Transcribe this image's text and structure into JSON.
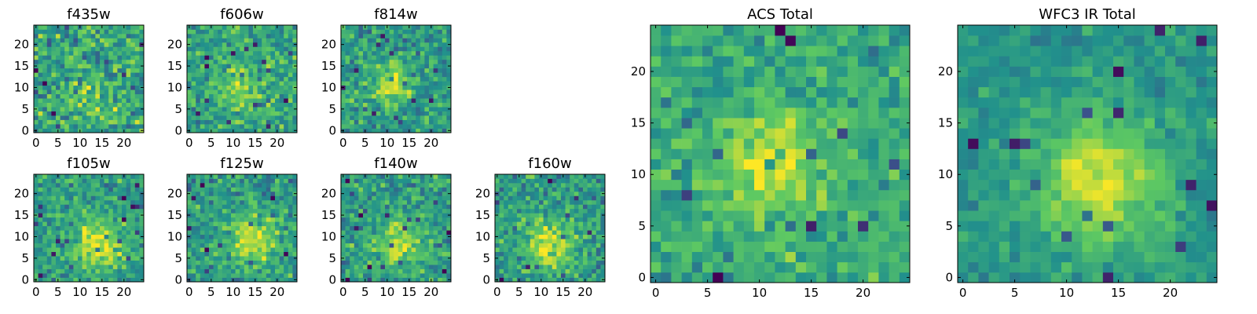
{
  "figure": {
    "description_title": ""
  },
  "colormap": {
    "name": "viridis",
    "stops": [
      "#440154",
      "#3b528b",
      "#21918c",
      "#5ec962",
      "#fde725"
    ]
  },
  "chart_data": [
    {
      "type": "heatmap",
      "title": "f435w",
      "grid_size": 25,
      "xlim": [
        0,
        24
      ],
      "ylim": [
        0,
        24
      ],
      "xticks": [
        0,
        5,
        10,
        15,
        20
      ],
      "yticks": [
        0,
        5,
        10,
        15,
        20
      ],
      "xtick_labels": [
        "0",
        "5",
        "10",
        "15",
        "20"
      ],
      "ytick_labels": [
        "0",
        "5",
        "10",
        "15",
        "20"
      ],
      "source_center": [
        12,
        8
      ],
      "source_sigma": 3.5,
      "peak_amplitude": 0.15,
      "noise_level": 0.28,
      "background_level": 0.58,
      "seed": 11
    },
    {
      "type": "heatmap",
      "title": "f606w",
      "grid_size": 25,
      "xlim": [
        0,
        24
      ],
      "ylim": [
        0,
        24
      ],
      "xticks": [
        0,
        5,
        10,
        15,
        20
      ],
      "yticks": [
        0,
        5,
        10,
        15,
        20
      ],
      "xtick_labels": [
        "0",
        "5",
        "10",
        "15",
        "20"
      ],
      "ytick_labels": [
        "0",
        "5",
        "10",
        "15",
        "20"
      ],
      "source_center": [
        12,
        10
      ],
      "source_sigma": 3.5,
      "peak_amplitude": 0.25,
      "noise_level": 0.22,
      "background_level": 0.58,
      "seed": 23
    },
    {
      "type": "heatmap",
      "title": "f814w",
      "grid_size": 25,
      "xlim": [
        0,
        24
      ],
      "ylim": [
        0,
        24
      ],
      "xticks": [
        0,
        5,
        10,
        15,
        20
      ],
      "yticks": [
        0,
        5,
        10,
        15,
        20
      ],
      "xtick_labels": [
        "0",
        "5",
        "10",
        "15",
        "20"
      ],
      "ytick_labels": [
        "0",
        "5",
        "10",
        "15",
        "20"
      ],
      "source_center": [
        11,
        11
      ],
      "source_sigma": 3.2,
      "peak_amplitude": 0.35,
      "noise_level": 0.22,
      "background_level": 0.55,
      "seed": 37
    },
    {
      "type": "heatmap",
      "title": "f105w",
      "grid_size": 25,
      "xlim": [
        0,
        24
      ],
      "ylim": [
        0,
        24
      ],
      "xticks": [
        0,
        5,
        10,
        15,
        20
      ],
      "yticks": [
        0,
        5,
        10,
        15,
        20
      ],
      "xtick_labels": [
        "0",
        "5",
        "10",
        "15",
        "20"
      ],
      "ytick_labels": [
        "0",
        "5",
        "10",
        "15",
        "20"
      ],
      "source_center": [
        14,
        8
      ],
      "source_sigma": 4.0,
      "peak_amplitude": 0.4,
      "noise_level": 0.2,
      "background_level": 0.55,
      "seed": 41
    },
    {
      "type": "heatmap",
      "title": "f125w",
      "grid_size": 25,
      "xlim": [
        0,
        24
      ],
      "ylim": [
        0,
        24
      ],
      "xticks": [
        0,
        5,
        10,
        15,
        20
      ],
      "yticks": [
        0,
        5,
        10,
        15,
        20
      ],
      "xtick_labels": [
        "0",
        "5",
        "10",
        "15",
        "20"
      ],
      "ytick_labels": [
        "0",
        "5",
        "10",
        "15",
        "20"
      ],
      "source_center": [
        14,
        9
      ],
      "source_sigma": 4.0,
      "peak_amplitude": 0.35,
      "noise_level": 0.22,
      "background_level": 0.55,
      "seed": 53
    },
    {
      "type": "heatmap",
      "title": "f140w",
      "grid_size": 25,
      "xlim": [
        0,
        24
      ],
      "ylim": [
        0,
        24
      ],
      "xticks": [
        0,
        5,
        10,
        15,
        20
      ],
      "yticks": [
        0,
        5,
        10,
        15,
        20
      ],
      "xtick_labels": [
        "0",
        "5",
        "10",
        "15",
        "20"
      ],
      "ytick_labels": [
        "0",
        "5",
        "10",
        "15",
        "20"
      ],
      "source_center": [
        13,
        8
      ],
      "source_sigma": 4.0,
      "peak_amplitude": 0.35,
      "noise_level": 0.22,
      "background_level": 0.55,
      "seed": 67
    },
    {
      "type": "heatmap",
      "title": "f160w",
      "grid_size": 25,
      "xlim": [
        0,
        24
      ],
      "ylim": [
        0,
        24
      ],
      "xticks": [
        0,
        5,
        10,
        15,
        20
      ],
      "yticks": [
        0,
        5,
        10,
        15,
        20
      ],
      "xtick_labels": [
        "0",
        "5",
        "10",
        "15",
        "20"
      ],
      "ytick_labels": [
        "0",
        "5",
        "10",
        "15",
        "20"
      ],
      "source_center": [
        12,
        8
      ],
      "source_sigma": 4.0,
      "peak_amplitude": 0.35,
      "noise_level": 0.22,
      "background_level": 0.55,
      "seed": 79
    },
    {
      "type": "heatmap",
      "title": "ACS Total",
      "grid_size": 25,
      "xlim": [
        0,
        24
      ],
      "ylim": [
        0,
        24
      ],
      "xticks": [
        0,
        5,
        10,
        15,
        20
      ],
      "yticks": [
        0,
        5,
        10,
        15,
        20
      ],
      "xtick_labels": [
        "0",
        "5",
        "10",
        "15",
        "20"
      ],
      "ytick_labels": [
        "0",
        "5",
        "10",
        "15",
        "20"
      ],
      "source_center": [
        11,
        11
      ],
      "source_sigma": 3.5,
      "peak_amplitude": 0.32,
      "noise_level": 0.18,
      "background_level": 0.6,
      "seed": 97
    },
    {
      "type": "heatmap",
      "title": "WFC3 IR Total",
      "grid_size": 25,
      "xlim": [
        0,
        24
      ],
      "ylim": [
        0,
        24
      ],
      "xticks": [
        0,
        5,
        10,
        15,
        20
      ],
      "yticks": [
        0,
        5,
        10,
        15,
        20
      ],
      "xtick_labels": [
        "0",
        "5",
        "10",
        "15",
        "20"
      ],
      "ytick_labels": [
        "0",
        "5",
        "10",
        "15",
        "20"
      ],
      "source_center": [
        13,
        9
      ],
      "source_sigma": 4.5,
      "peak_amplitude": 0.4,
      "noise_level": 0.12,
      "background_level": 0.52,
      "seed": 131
    }
  ]
}
